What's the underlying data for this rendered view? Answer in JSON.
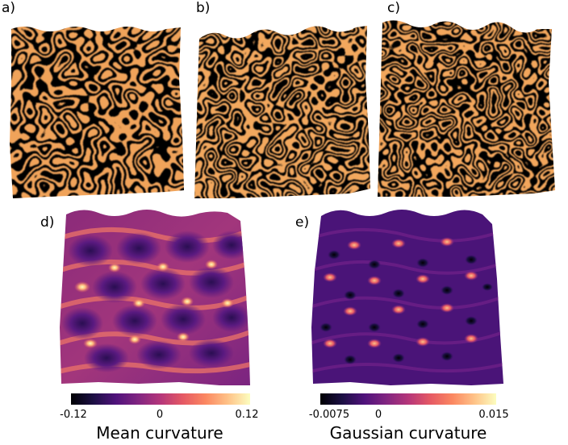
{
  "panels": [
    {
      "label": "a)"
    },
    {
      "label": "b)"
    },
    {
      "label": "c)"
    },
    {
      "label": "d)"
    },
    {
      "label": "e)"
    }
  ],
  "colorbars": [
    {
      "title": "Mean curvature",
      "ticks": [
        "-0.12",
        "0",
        "0.12"
      ]
    },
    {
      "title": "Gaussian curvature",
      "ticks": [
        "-0.0075",
        "0",
        "0.015"
      ]
    }
  ],
  "colors": {
    "colormap": [
      "#000004",
      "#1c1044",
      "#4f127b",
      "#812581",
      "#b5367a",
      "#e55964",
      "#fb8761",
      "#fec287",
      "#fcfdbf"
    ],
    "stripe_dark": "#1a0b2e",
    "stripe_light": "#f5a55a"
  }
}
